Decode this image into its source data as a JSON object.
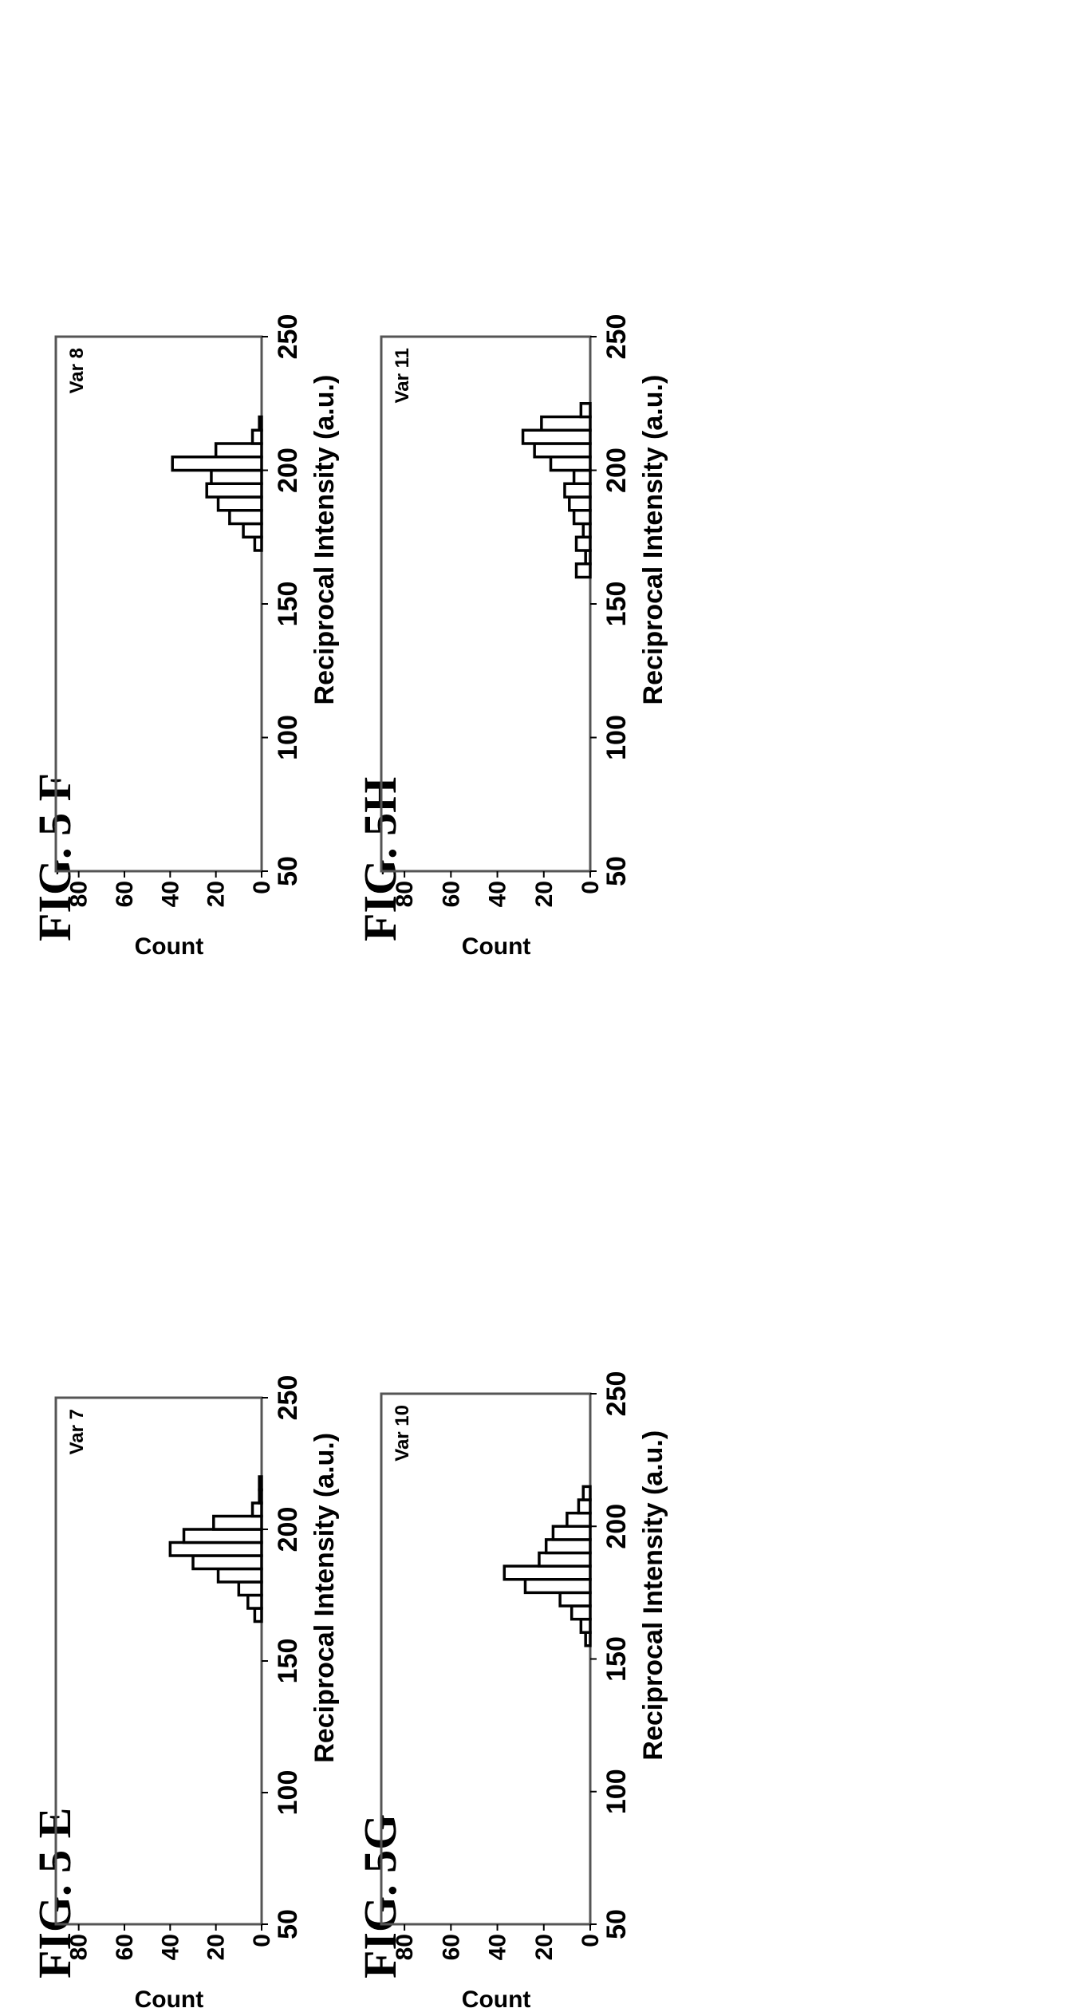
{
  "chart_data": [
    {
      "type": "bar",
      "figure_label": "FIG. 5 E",
      "panel_label": "Var 7",
      "xlabel": "Reciprocal Intensity (a.u.)",
      "ylabel": "Count",
      "xlim": [
        50,
        250
      ],
      "ylim": [
        0,
        90
      ],
      "xticks": [
        50,
        100,
        150,
        200,
        250
      ],
      "yticks": [
        0,
        20,
        40,
        60,
        80
      ],
      "bin_width": 5,
      "bins": [
        165,
        170,
        175,
        180,
        185,
        190,
        195,
        200,
        205,
        210,
        215
      ],
      "values": [
        3,
        6,
        10,
        19,
        30,
        40,
        34,
        21,
        4,
        1,
        1
      ]
    },
    {
      "type": "bar",
      "figure_label": "FIG. 5 F",
      "panel_label": "Var 8",
      "xlabel": "Reciprocal Intensity (a.u.)",
      "ylabel": "Count",
      "xlim": [
        50,
        250
      ],
      "ylim": [
        0,
        90
      ],
      "xticks": [
        50,
        100,
        150,
        200,
        250
      ],
      "yticks": [
        0,
        20,
        40,
        60,
        80
      ],
      "bin_width": 5,
      "bins": [
        170,
        175,
        180,
        185,
        190,
        195,
        200,
        205,
        210,
        215
      ],
      "values": [
        3,
        8,
        14,
        19,
        24,
        22,
        39,
        20,
        4,
        1
      ]
    },
    {
      "type": "bar",
      "figure_label": "FIG. 5G",
      "panel_label": "Var 10",
      "xlabel": "Reciprocal Intensity (a.u.)",
      "ylabel": "Count",
      "xlim": [
        50,
        250
      ],
      "ylim": [
        0,
        90
      ],
      "xticks": [
        50,
        100,
        150,
        200,
        250
      ],
      "yticks": [
        0,
        20,
        40,
        60,
        80
      ],
      "bin_width": 5,
      "bins": [
        155,
        160,
        165,
        170,
        175,
        180,
        185,
        190,
        195,
        200,
        205,
        210
      ],
      "values": [
        2,
        4,
        8,
        13,
        28,
        37,
        22,
        19,
        16,
        10,
        5,
        3
      ]
    },
    {
      "type": "bar",
      "figure_label": "FIG. 5H",
      "panel_label": "Var 11",
      "xlabel": "Reciprocal Intensity (a.u.)",
      "ylabel": "Count",
      "xlim": [
        50,
        250
      ],
      "ylim": [
        0,
        90
      ],
      "xticks": [
        50,
        100,
        150,
        200,
        250
      ],
      "yticks": [
        0,
        20,
        40,
        60,
        80
      ],
      "bin_width": 5,
      "bins": [
        160,
        165,
        170,
        175,
        180,
        185,
        190,
        195,
        200,
        205,
        210,
        215,
        220
      ],
      "values": [
        6,
        2,
        6,
        3,
        7,
        9,
        11,
        7,
        17,
        24,
        29,
        21,
        4
      ]
    }
  ]
}
